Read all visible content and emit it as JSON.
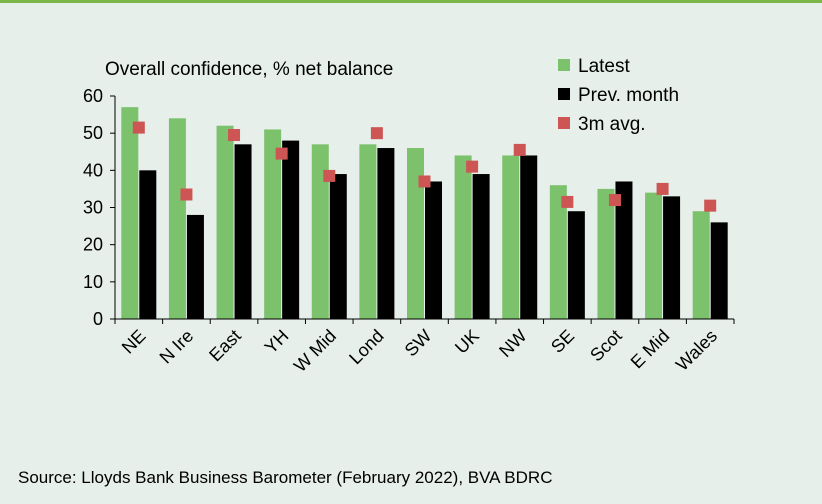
{
  "colors": {
    "latest": "#7cc16c",
    "prev_month": "#000000",
    "avg_3m": "#cd5655",
    "background": "#e6efea",
    "accent_rule": "#7ab648"
  },
  "source_text": "Source: Lloyds Bank Business Barometer (February 2022), BVA BDRC",
  "chart_data": {
    "type": "bar",
    "title": "Overall confidence, % net balance",
    "xlabel": "",
    "ylabel": "",
    "ylim": [
      0,
      60
    ],
    "yticks": [
      "0",
      "10",
      "20",
      "30",
      "40",
      "50",
      "60"
    ],
    "grid": false,
    "legend_position": "top-right",
    "categories": [
      "NE",
      "N Ire",
      "East",
      "YH",
      "W Mid",
      "Lond",
      "SW",
      "UK",
      "NW",
      "SE",
      "Scot",
      "E Mid",
      "Wales"
    ],
    "series": [
      {
        "name": "Latest",
        "kind": "bar",
        "values": [
          57,
          54,
          52,
          51,
          47,
          47,
          46,
          44,
          44,
          36,
          35,
          34,
          29
        ]
      },
      {
        "name": "Prev. month",
        "kind": "bar",
        "values": [
          40,
          28,
          47,
          48,
          39,
          46,
          37,
          39,
          44,
          29,
          37,
          33,
          26
        ]
      },
      {
        "name": "3m avg.",
        "kind": "marker",
        "values": [
          51.5,
          33.5,
          49.5,
          44.5,
          38.5,
          50,
          37,
          41,
          45.5,
          31.5,
          32,
          35,
          30.5
        ]
      }
    ]
  }
}
